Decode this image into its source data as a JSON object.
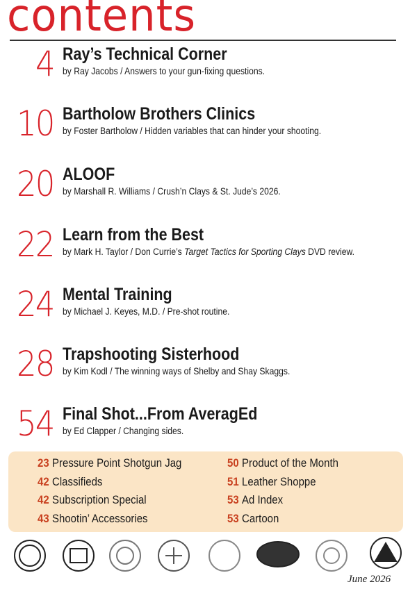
{
  "header": {
    "title": "contents"
  },
  "entries": [
    {
      "page": 4,
      "title": "Ray’s Technical Corner",
      "byline": [
        {
          "text": "by Ray Jacobs / Answers to your gun-fixing questions.",
          "italic": false
        }
      ]
    },
    {
      "page": 10,
      "title": "Bartholow Brothers Clinics",
      "byline": [
        {
          "text": "by Foster Bartholow / Hidden variables that can hinder your shooting.",
          "italic": false
        }
      ]
    },
    {
      "page": 20,
      "title": "ALOOF",
      "byline": [
        {
          "text": "by Marshall R. Williams / Crush’n Clays & St. Jude’s 2026.",
          "italic": false
        }
      ]
    },
    {
      "page": 22,
      "title": "Learn from the Best",
      "byline": [
        {
          "text": "by Mark H. Taylor / Don Currie’s ",
          "italic": false
        },
        {
          "text": "Target Tactics for Sporting Clays",
          "italic": true
        },
        {
          "text": " DVD review.",
          "italic": false
        }
      ]
    },
    {
      "page": 24,
      "title": "Mental Training",
      "byline": [
        {
          "text": "by Michael J. Keyes, M.D. / Pre-shot routine.",
          "italic": false
        }
      ]
    },
    {
      "page": 28,
      "title": "Trapshooting Sisterhood",
      "byline": [
        {
          "text": "by Kim Kodl / The winning ways of Shelby and Shay Skaggs.",
          "italic": false
        }
      ]
    },
    {
      "page": 54,
      "title": "Final Shot...From AveragEd",
      "byline": [
        {
          "text": "by Ed Clapper / Changing sides.",
          "italic": false
        }
      ]
    }
  ],
  "sidebar": {
    "left": [
      {
        "page": 23,
        "title": "Pressure Point Shotgun Jag"
      },
      {
        "page": 42,
        "title": "Classifieds"
      },
      {
        "page": 42,
        "title": "Subscription Special"
      },
      {
        "page": 43,
        "title": "Shootin’ Accessories"
      }
    ],
    "right": [
      {
        "page": 50,
        "title": "Product of the Month"
      },
      {
        "page": 51,
        "title": "Leather Shoppe"
      },
      {
        "page": 53,
        "title": "Ad Index"
      },
      {
        "page": 53,
        "title": "Cartoon"
      }
    ]
  },
  "footer": {
    "date": "June 2026"
  }
}
